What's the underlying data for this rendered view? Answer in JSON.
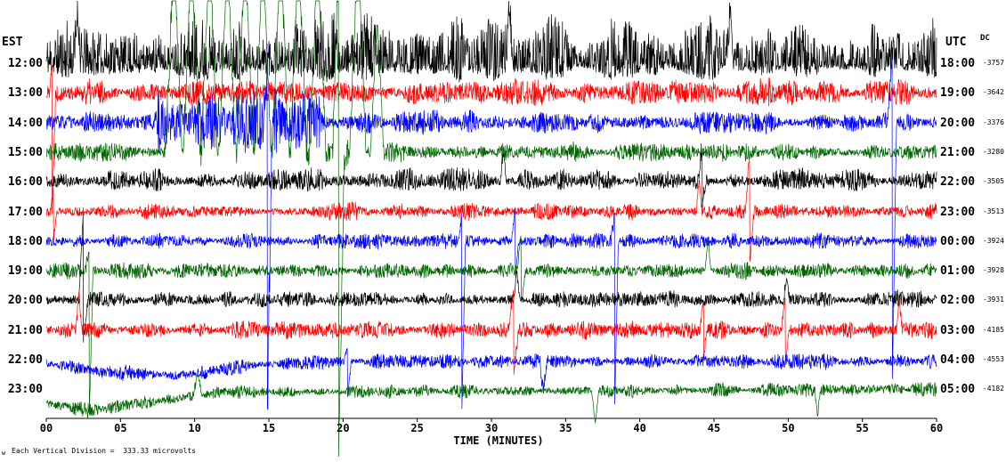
{
  "axes": {
    "left_header": "EST",
    "right_header": "UTC",
    "dc_header": "DC",
    "x_label": "TIME (MINUTES)",
    "x_ticks": [
      "00",
      "05",
      "10",
      "15",
      "20",
      "25",
      "30",
      "35",
      "40",
      "45",
      "50",
      "55",
      "60"
    ]
  },
  "footer": {
    "scale_note": "Each Vertical Division =  333.33 microvolts",
    "corner_glyph": "w"
  },
  "chart_data": {
    "type": "line",
    "subtype": "helicorder-seismogram",
    "title": "",
    "xlabel": "TIME (MINUTES)",
    "x_range_minutes": [
      0,
      60
    ],
    "x_tick_step_minutes": 5,
    "vertical_division_microvolts": 333.33,
    "left_timezone": "EST",
    "right_timezone": "UTC",
    "trace_colors_cycle": [
      "#000000",
      "#ff0000",
      "#0000ff",
      "#006400"
    ],
    "rows": [
      {
        "est": "12:00",
        "utc": "18:00",
        "dc": -3757,
        "color": "#000000",
        "amp": 20,
        "seed": 11,
        "up_gain": 3.1,
        "down_gain": 1.1,
        "spikes": [
          {
            "min": 2.1,
            "up": 62,
            "w": 0.2
          },
          {
            "min": 31.2,
            "up": 66,
            "w": 0.2
          },
          {
            "min": 46.1,
            "up": 60,
            "w": 0.2
          }
        ]
      },
      {
        "est": "13:00",
        "utc": "19:00",
        "dc": -3642,
        "color": "#ff0000",
        "amp": 13,
        "seed": 22,
        "up_gain": 1.3,
        "down_gain": 1.2,
        "spikes": [
          {
            "min": 0.4,
            "down": 138,
            "up": 40,
            "w": 0.22
          }
        ]
      },
      {
        "est": "14:00",
        "utc": "20:00",
        "dc": -3376,
        "color": "#0000ff",
        "amp": 15,
        "seed": 33,
        "bursts": [
          {
            "from": 7.5,
            "to": 18.5,
            "gain": 2.6
          }
        ],
        "spikes": [
          {
            "min": 14.9,
            "up": 75,
            "down": 330,
            "w": 0.3
          },
          {
            "min": 57.0,
            "up": 75,
            "down": 318,
            "w": 0.3
          }
        ]
      },
      {
        "est": "15:00",
        "utc": "21:00",
        "dc": -3280,
        "color": "#006400",
        "amp": 12,
        "seed": 44,
        "bursts": [
          {
            "from": 8,
            "to": 22,
            "gain": 1.7
          }
        ],
        "spikes": [
          {
            "min": 8.6,
            "up": 228,
            "w": 0.55
          },
          {
            "min": 9.8,
            "up": 228,
            "w": 0.55
          },
          {
            "min": 11.0,
            "up": 228,
            "w": 0.55
          },
          {
            "min": 12.2,
            "up": 228,
            "w": 0.55
          },
          {
            "min": 13.4,
            "up": 228,
            "w": 0.55
          },
          {
            "min": 14.6,
            "up": 228,
            "w": 0.55
          },
          {
            "min": 15.8,
            "up": 228,
            "w": 0.55
          },
          {
            "min": 17.0,
            "up": 228,
            "w": 0.55
          },
          {
            "min": 18.3,
            "up": 228,
            "w": 0.55
          },
          {
            "min": 19.7,
            "up": 228,
            "down": 344,
            "w": 0.4
          },
          {
            "min": 21.0,
            "up": 228,
            "w": 0.55
          },
          {
            "min": 22.3,
            "up": 150,
            "w": 0.45
          }
        ]
      },
      {
        "est": "16:00",
        "utc": "22:00",
        "dc": -3505,
        "color": "#000000",
        "amp": 11,
        "seed": 55,
        "up_gain": 1.5,
        "spikes": [
          {
            "min": 30.8,
            "up": 34,
            "w": 0.2
          },
          {
            "min": 44.2,
            "up": 40,
            "down": 28,
            "w": 0.25
          }
        ]
      },
      {
        "est": "17:00",
        "utc": "23:00",
        "dc": -3513,
        "color": "#ff0000",
        "amp": 11,
        "seed": 66,
        "spikes": [
          {
            "min": 0.5,
            "up": 30,
            "down": 30,
            "w": 0.2
          },
          {
            "min": 44.0,
            "up": 38,
            "w": 0.2
          },
          {
            "min": 47.4,
            "up": 62,
            "down": 56,
            "w": 0.3
          }
        ]
      },
      {
        "est": "18:00",
        "utc": "00:00",
        "dc": -3924,
        "color": "#0000ff",
        "amp": 10,
        "seed": 77,
        "spikes": [
          {
            "min": 28.0,
            "down": 196,
            "up": 30,
            "w": 0.25
          },
          {
            "min": 31.6,
            "up": 38,
            "down": 38,
            "w": 0.25
          },
          {
            "min": 38.3,
            "down": 198,
            "up": 30,
            "w": 0.25
          }
        ]
      },
      {
        "est": "19:00",
        "utc": "01:00",
        "dc": -3928,
        "color": "#006400",
        "amp": 10,
        "seed": 88,
        "spikes": [
          {
            "min": 2.9,
            "down": 164,
            "up": 28,
            "w": 0.25
          },
          {
            "min": 32.0,
            "up": 44,
            "down": 38,
            "w": 0.3
          },
          {
            "min": 44.6,
            "up": 34,
            "w": 0.2
          }
        ]
      },
      {
        "est": "20:00",
        "utc": "02:00",
        "dc": -3931,
        "color": "#000000",
        "amp": 9,
        "seed": 99,
        "up_gain": 1.4,
        "spikes": [
          {
            "min": 2.5,
            "up": 100,
            "down": 44,
            "w": 0.3
          },
          {
            "min": 31.7,
            "up": 34,
            "w": 0.2
          },
          {
            "min": 49.9,
            "up": 30,
            "w": 0.2
          }
        ]
      },
      {
        "est": "21:00",
        "utc": "03:00",
        "dc": -4185,
        "color": "#ff0000",
        "amp": 11,
        "seed": 110,
        "spikes": [
          {
            "min": 2.2,
            "up": 40,
            "w": 0.2
          },
          {
            "min": 31.5,
            "up": 48,
            "down": 46,
            "w": 0.35
          },
          {
            "min": 44.3,
            "up": 36,
            "down": 30,
            "w": 0.25
          },
          {
            "min": 49.8,
            "up": 42,
            "down": 40,
            "w": 0.25
          },
          {
            "min": 57.5,
            "up": 34,
            "w": 0.2
          }
        ]
      },
      {
        "est": "22:00",
        "utc": "04:00",
        "dc": -4553,
        "color": "#0000ff",
        "amp": 10,
        "seed": 121,
        "drift": [
          [
            0,
            4
          ],
          [
            4,
            14
          ],
          [
            9,
            18
          ],
          [
            14,
            6
          ],
          [
            20,
            2
          ],
          [
            60,
            2
          ]
        ],
        "spikes": [
          {
            "min": 20.3,
            "down": 44,
            "up": 20,
            "w": 0.25
          },
          {
            "min": 33.5,
            "down": 34,
            "w": 0.25
          }
        ]
      },
      {
        "est": "23:00",
        "utc": "05:00",
        "dc": -4182,
        "color": "#006400",
        "amp": 9,
        "seed": 132,
        "drift": [
          [
            0,
            16
          ],
          [
            3,
            24
          ],
          [
            7,
            14
          ],
          [
            12,
            3
          ],
          [
            60,
            0
          ]
        ],
        "spikes": [
          {
            "min": 10.2,
            "up": 24,
            "w": 0.3
          },
          {
            "min": 37.0,
            "down": 38,
            "w": 0.25
          },
          {
            "min": 52.0,
            "down": 28,
            "w": 0.2
          }
        ]
      }
    ]
  }
}
